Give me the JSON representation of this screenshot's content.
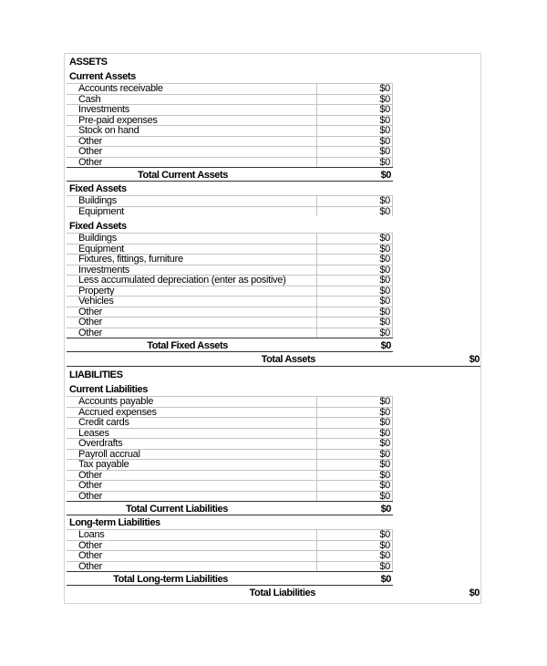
{
  "sections": [
    {
      "type": "title",
      "label": "ASSETS"
    },
    {
      "type": "sub",
      "label": "Current Assets"
    },
    {
      "type": "items",
      "items": [
        {
          "label": "Accounts receivable",
          "value": "$0"
        },
        {
          "label": "Cash",
          "value": "$0"
        },
        {
          "label": "Investments",
          "value": "$0"
        },
        {
          "label": "Pre-paid expenses",
          "value": "$0"
        },
        {
          "label": "Stock on hand",
          "value": "$0"
        },
        {
          "label": "Other",
          "value": "$0"
        },
        {
          "label": "Other",
          "value": "$0"
        },
        {
          "label": "Other",
          "value": "$0"
        }
      ]
    },
    {
      "type": "total",
      "label": "Total Current Assets",
      "value": "$0"
    },
    {
      "type": "sub",
      "label": "Fixed Assets"
    },
    {
      "type": "items",
      "items": [
        {
          "label": "Buildings",
          "value": "$0"
        },
        {
          "label": "Equipment",
          "value": "$0"
        }
      ]
    },
    {
      "type": "subgap",
      "label": "Fixed Assets"
    },
    {
      "type": "items",
      "items": [
        {
          "label": "Buildings",
          "value": "$0"
        },
        {
          "label": "Equipment",
          "value": "$0"
        },
        {
          "label": "Fixtures, fittings, furniture",
          "value": "$0"
        },
        {
          "label": "Investments",
          "value": "$0"
        },
        {
          "label": "Less accumulated depreciation (enter as positive)",
          "value": "$0"
        },
        {
          "label": "Property",
          "value": "$0"
        },
        {
          "label": "Vehicles",
          "value": "$0"
        },
        {
          "label": "Other",
          "value": "$0"
        },
        {
          "label": "Other",
          "value": "$0"
        },
        {
          "label": "Other",
          "value": "$0"
        }
      ]
    },
    {
      "type": "total",
      "label": "Total Fixed Assets",
      "value": "$0"
    },
    {
      "type": "grand",
      "label": "Total Assets",
      "value": "$0"
    },
    {
      "type": "title",
      "label": "LIABILITIES"
    },
    {
      "type": "sub",
      "label": "Current Liabilities"
    },
    {
      "type": "items",
      "items": [
        {
          "label": "Accounts payable",
          "value": "$0"
        },
        {
          "label": "Accrued expenses",
          "value": "$0"
        },
        {
          "label": "Credit cards",
          "value": "$0"
        },
        {
          "label": "Leases",
          "value": "$0"
        },
        {
          "label": "Overdrafts",
          "value": "$0"
        },
        {
          "label": "Payroll accrual",
          "value": "$0"
        },
        {
          "label": "Tax payable",
          "value": "$0"
        },
        {
          "label": "Other",
          "value": "$0"
        },
        {
          "label": "Other",
          "value": "$0"
        },
        {
          "label": "Other",
          "value": "$0"
        }
      ]
    },
    {
      "type": "total",
      "label": "Total Current Liabilities",
      "value": "$0"
    },
    {
      "type": "sub",
      "label": "Long-term Liabilities"
    },
    {
      "type": "items",
      "items": [
        {
          "label": "Loans",
          "value": "$0"
        },
        {
          "label": "Other",
          "value": "$0"
        },
        {
          "label": "Other",
          "value": "$0"
        },
        {
          "label": "Other",
          "value": "$0"
        }
      ]
    },
    {
      "type": "total",
      "label": "Total Long-term Liabilities",
      "value": "$0"
    },
    {
      "type": "grand",
      "label": "Total Liabilities",
      "value": "$0"
    }
  ]
}
